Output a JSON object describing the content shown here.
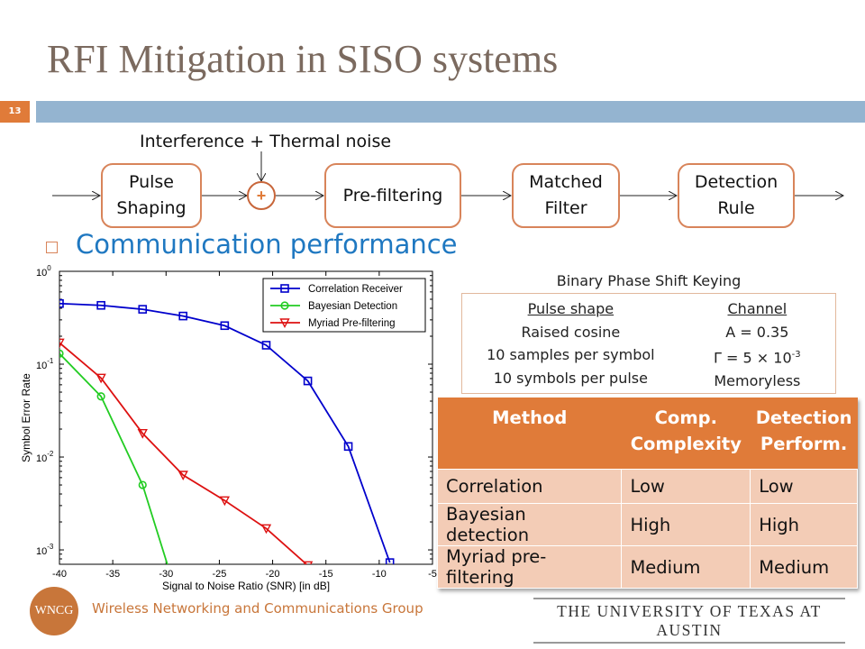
{
  "title": "RFI Mitigation in SISO systems",
  "slide_number": "13",
  "colors": {
    "accent_orange": "#e07b39",
    "bar_blue": "#94b4d0",
    "bullet_blue": "#1f78c1"
  },
  "diagram": {
    "noise_label": "Interference + Thermal noise",
    "blocks": [
      "Pulse Shaping",
      "Pre-filtering",
      "Matched Filter",
      "Detection Rule"
    ],
    "adder_symbol": "+"
  },
  "bullet": "Communication performance",
  "params": {
    "title": "Binary Phase Shift Keying",
    "pulse_header": "Pulse shape",
    "pulse_items": [
      "Raised cosine",
      "10 samples per symbol",
      "10 symbols per pulse"
    ],
    "channel_header": "Channel",
    "channel_items": [
      "A = 0.35",
      "Γ = 5 × 10",
      "Memoryless"
    ],
    "gamma_exp": "-3"
  },
  "methods_table": {
    "headers": [
      "Method",
      "Comp. Complexity",
      "Detection Perform."
    ],
    "rows": [
      [
        "Correlation",
        "Low",
        "Low"
      ],
      [
        "Bayesian detection",
        "High",
        "High"
      ],
      [
        "Myriad pre-filtering",
        "Medium",
        "Medium"
      ]
    ]
  },
  "chart_data": {
    "type": "line",
    "xlabel": "Signal to Noise Ratio (SNR) [in dB]",
    "ylabel": "Symbol Error Rate",
    "xlim": [
      -40,
      -5
    ],
    "ylim": [
      0.0007,
      1
    ],
    "yscale": "log",
    "xticks": [
      -40,
      -35,
      -30,
      -25,
      -20,
      -15,
      -10,
      -5
    ],
    "yticks": [
      1,
      0.1,
      0.01,
      0.001
    ],
    "ytick_labels": [
      {
        "base": "10",
        "exp": "0"
      },
      {
        "base": "10",
        "exp": "-1"
      },
      {
        "base": "10",
        "exp": "-2"
      },
      {
        "base": "10",
        "exp": "-3"
      }
    ],
    "legend": "top-right",
    "grid": false,
    "series": [
      {
        "name": "Correlation Receiver",
        "color": "#0000cc",
        "marker": "square",
        "x": [
          -40,
          -36.1,
          -32.2,
          -28.4,
          -24.5,
          -20.6,
          -16.7,
          -12.9,
          -9.0
        ],
        "y": [
          0.45,
          0.43,
          0.39,
          0.33,
          0.26,
          0.16,
          0.066,
          0.013,
          0.00073
        ]
      },
      {
        "name": "Bayesian Detection",
        "color": "#22cc22",
        "marker": "circle",
        "x": [
          -40,
          -36.1,
          -32.2,
          -28.4
        ],
        "y": [
          0.13,
          0.045,
          0.005,
          0.0002
        ]
      },
      {
        "name": "Myriad Pre-filtering",
        "color": "#dd1111",
        "marker": "triangle-down",
        "x": [
          -40,
          -36.1,
          -32.2,
          -28.4,
          -24.5,
          -20.6,
          -16.7
        ],
        "y": [
          0.17,
          0.071,
          0.018,
          0.0064,
          0.0034,
          0.0017,
          0.00068
        ]
      }
    ]
  },
  "footer": {
    "logo": "WNCG",
    "group": "Wireless Networking and Communications Group",
    "university": "THE UNIVERSITY OF TEXAS AT AUSTIN"
  }
}
